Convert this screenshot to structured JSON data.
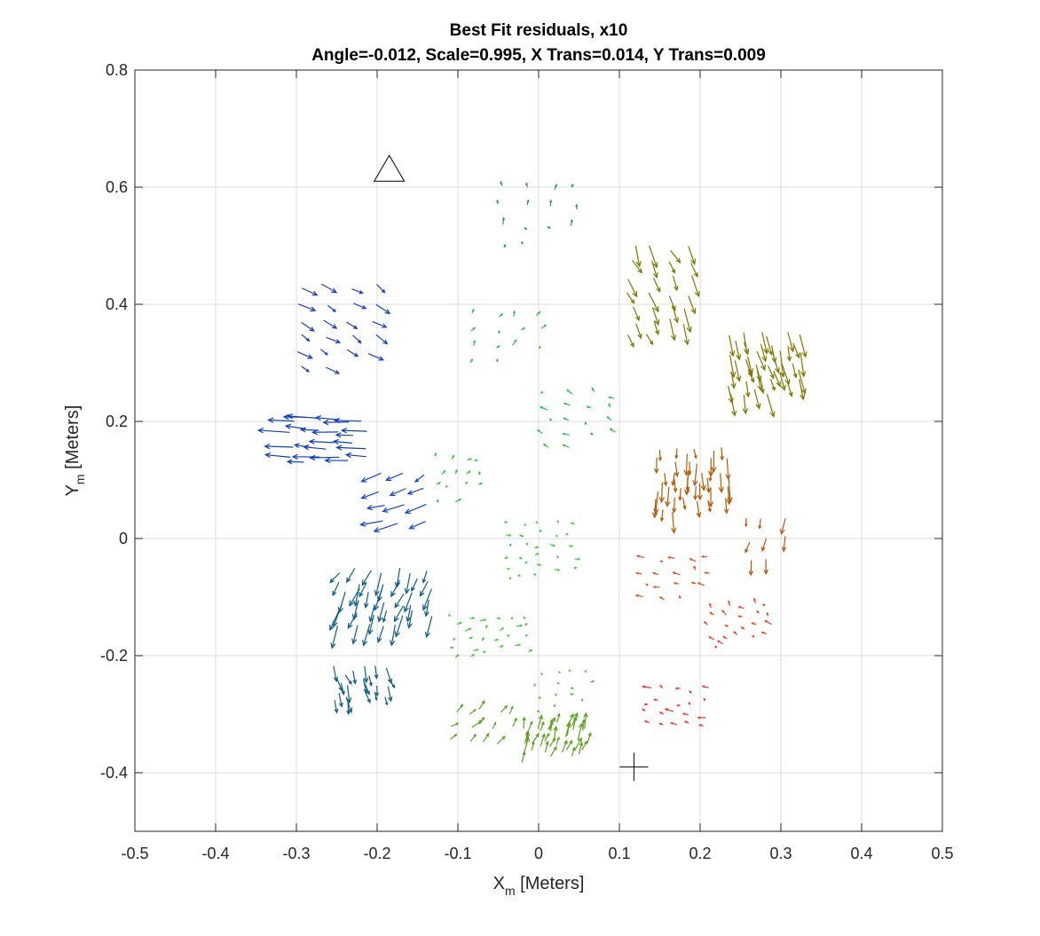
{
  "chart_data": {
    "type": "quiver",
    "title": "Best Fit residuals, x10",
    "subtitle": "Angle=-0.012, Scale=0.995, X Trans=0.014, Y Trans=0.009",
    "xlabel": {
      "main": "X",
      "sub": "m",
      "rest": " [Meters]"
    },
    "ylabel": {
      "main": "Y",
      "sub": "m",
      "rest": " [Meters]"
    },
    "xlim": [
      -0.5,
      0.5
    ],
    "ylim": [
      -0.5,
      0.8
    ],
    "xticks": [
      "-0.5",
      "-0.4",
      "-0.3",
      "-0.2",
      "-0.1",
      "0",
      "0.1",
      "0.2",
      "0.3",
      "0.4",
      "0.5"
    ],
    "yticks": [
      "-0.4",
      "-0.2",
      "0",
      "0.2",
      "0.4",
      "0.6",
      "0.8"
    ],
    "grid": true,
    "markers": [
      {
        "shape": "triangle",
        "x": -0.185,
        "y": 0.63
      },
      {
        "shape": "plus",
        "x": 0.118,
        "y": -0.39
      }
    ],
    "clusters": [
      {
        "name": "upper-left",
        "color": "#1a3fc4",
        "cx": -0.25,
        "cy": 0.36,
        "spreadX": 0.09,
        "spreadY": 0.14,
        "count": 22,
        "u": 0.015,
        "v": -0.012
      },
      {
        "name": "left",
        "color": "#1040b8",
        "cx": -0.26,
        "cy": 0.17,
        "spreadX": 0.09,
        "spreadY": 0.07,
        "count": 24,
        "u": -0.03,
        "v": 0.002
      },
      {
        "name": "left-inner",
        "color": "#1548c8",
        "cx": -0.17,
        "cy": 0.07,
        "spreadX": 0.05,
        "spreadY": 0.08,
        "count": 12,
        "u": -0.022,
        "v": -0.012
      },
      {
        "name": "lower-left",
        "color": "#0f5c86",
        "cx": -0.19,
        "cy": -0.1,
        "spreadX": 0.11,
        "spreadY": 0.09,
        "count": 40,
        "u": -0.008,
        "v": -0.03
      },
      {
        "name": "lower-left-2",
        "color": "#135e7e",
        "cx": -0.22,
        "cy": -0.25,
        "spreadX": 0.06,
        "spreadY": 0.06,
        "count": 22,
        "u": 0.004,
        "v": -0.022
      },
      {
        "name": "top-center",
        "color": "#17a050",
        "cx": 0.0,
        "cy": 0.55,
        "spreadX": 0.09,
        "spreadY": 0.1,
        "count": 14,
        "u": 0.0,
        "v": 0.008
      },
      {
        "name": "center-upper",
        "color": "#2fbf48",
        "cx": -0.04,
        "cy": 0.34,
        "spreadX": 0.08,
        "spreadY": 0.08,
        "count": 14,
        "u": 0.004,
        "v": 0.006
      },
      {
        "name": "center-right-upper",
        "color": "#22c444",
        "cx": 0.05,
        "cy": 0.2,
        "spreadX": 0.08,
        "spreadY": 0.09,
        "count": 18,
        "u": -0.005,
        "v": 0.004
      },
      {
        "name": "center-left",
        "color": "#2ecc40",
        "cx": -0.1,
        "cy": 0.1,
        "spreadX": 0.05,
        "spreadY": 0.07,
        "count": 14,
        "u": 0.003,
        "v": 0.004
      },
      {
        "name": "center",
        "color": "#39d43b",
        "cx": 0.0,
        "cy": -0.02,
        "spreadX": 0.08,
        "spreadY": 0.09,
        "count": 28,
        "u": 0.003,
        "v": 0.0
      },
      {
        "name": "center-lower",
        "color": "#44c83a",
        "cx": -0.06,
        "cy": -0.17,
        "spreadX": 0.09,
        "spreadY": 0.07,
        "count": 26,
        "u": 0.004,
        "v": 0.002
      },
      {
        "name": "center-lower-right",
        "color": "#58c24a",
        "cx": 0.03,
        "cy": -0.26,
        "spreadX": 0.06,
        "spreadY": 0.06,
        "count": 14,
        "u": 0.002,
        "v": 0.0
      },
      {
        "name": "bottom-left",
        "color": "#5aa82a",
        "cx": -0.07,
        "cy": -0.32,
        "spreadX": 0.07,
        "spreadY": 0.05,
        "count": 14,
        "u": 0.008,
        "v": 0.012
      },
      {
        "name": "bottom",
        "color": "#5ea021",
        "cx": 0.02,
        "cy": -0.35,
        "spreadX": 0.07,
        "spreadY": 0.06,
        "count": 36,
        "u": 0.005,
        "v": 0.02
      },
      {
        "name": "upper-right",
        "color": "#7a7a00",
        "cx": 0.15,
        "cy": 0.42,
        "spreadX": 0.07,
        "spreadY": 0.15,
        "count": 26,
        "u": 0.008,
        "v": -0.03
      },
      {
        "name": "upper-right-far",
        "color": "#7f7700",
        "cx": 0.28,
        "cy": 0.3,
        "spreadX": 0.08,
        "spreadY": 0.1,
        "count": 40,
        "u": 0.006,
        "v": -0.033
      },
      {
        "name": "right-mid",
        "color": "#b05a06",
        "cx": 0.19,
        "cy": 0.1,
        "spreadX": 0.08,
        "spreadY": 0.1,
        "count": 38,
        "u": 0.0,
        "v": -0.028
      },
      {
        "name": "right-edge",
        "color": "#c0520c",
        "cx": 0.28,
        "cy": 0.0,
        "spreadX": 0.04,
        "spreadY": 0.07,
        "count": 8,
        "u": -0.003,
        "v": -0.02
      },
      {
        "name": "right-lower",
        "color": "#e0511c",
        "cx": 0.17,
        "cy": -0.07,
        "spreadX": 0.08,
        "spreadY": 0.07,
        "count": 18,
        "u": -0.006,
        "v": 0.003
      },
      {
        "name": "right-lower-far",
        "color": "#ea4522",
        "cx": 0.25,
        "cy": -0.15,
        "spreadX": 0.07,
        "spreadY": 0.07,
        "count": 22,
        "u": -0.004,
        "v": 0.004
      },
      {
        "name": "bottom-right",
        "color": "#f03a2a",
        "cx": 0.17,
        "cy": -0.29,
        "spreadX": 0.07,
        "spreadY": 0.06,
        "count": 20,
        "u": -0.006,
        "v": 0.002
      }
    ]
  }
}
